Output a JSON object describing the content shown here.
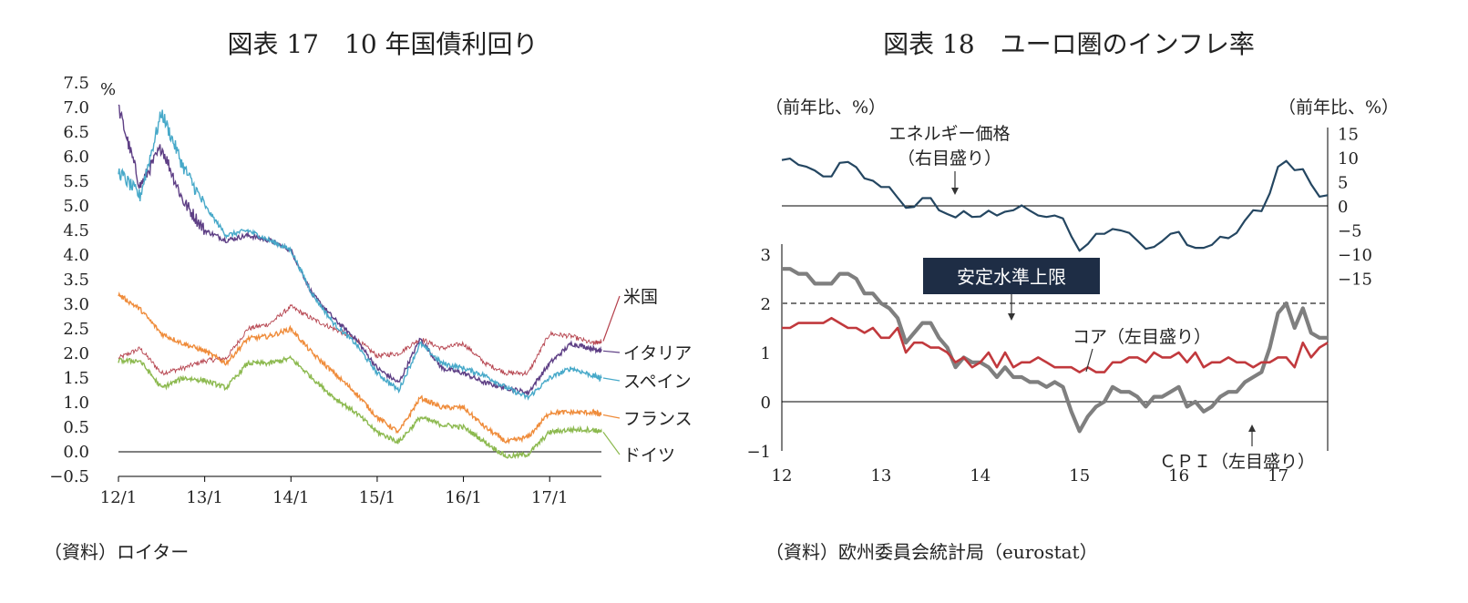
{
  "chart_data": [
    {
      "type": "line",
      "title": "図表 17　10 年国債利回り",
      "unit": "%",
      "ylim": [
        -0.5,
        7.5
      ],
      "yticks": [
        "7.5",
        "7.0",
        "6.5",
        "6.0",
        "5.5",
        "5.0",
        "4.5",
        "4.0",
        "3.5",
        "3.0",
        "2.5",
        "2.0",
        "1.5",
        "1.0",
        "0.5",
        "0.0",
        "−0.5"
      ],
      "xticks": [
        "12/1",
        "13/1",
        "14/1",
        "15/1",
        "16/1",
        "17/1"
      ],
      "x": [
        2012.0,
        2012.25,
        2012.5,
        2012.75,
        2013.0,
        2013.25,
        2013.5,
        2013.75,
        2014.0,
        2014.25,
        2014.5,
        2014.75,
        2015.0,
        2015.25,
        2015.5,
        2015.75,
        2016.0,
        2016.25,
        2016.5,
        2016.75,
        2017.0,
        2017.25,
        2017.5,
        2017.6
      ],
      "series": [
        {
          "name": "米国",
          "color": "#b5424d",
          "values": [
            1.9,
            2.1,
            1.6,
            1.7,
            1.85,
            1.9,
            2.5,
            2.6,
            2.95,
            2.7,
            2.5,
            2.3,
            1.95,
            2.0,
            2.3,
            2.1,
            2.2,
            1.8,
            1.6,
            1.6,
            2.4,
            2.35,
            2.2,
            2.25
          ]
        },
        {
          "name": "イタリア",
          "color": "#5e3f85",
          "values": [
            7.0,
            5.4,
            6.2,
            5.1,
            4.5,
            4.3,
            4.4,
            4.3,
            4.1,
            3.2,
            2.7,
            2.3,
            1.7,
            1.4,
            2.3,
            1.7,
            1.6,
            1.4,
            1.3,
            1.2,
            1.8,
            2.2,
            2.1,
            2.05
          ]
        },
        {
          "name": "スペイン",
          "color": "#47a9c9",
          "values": [
            5.7,
            5.2,
            6.9,
            5.8,
            5.0,
            4.4,
            4.5,
            4.3,
            4.1,
            3.2,
            2.6,
            2.2,
            1.6,
            1.25,
            2.2,
            1.8,
            1.7,
            1.55,
            1.3,
            1.1,
            1.5,
            1.7,
            1.55,
            1.5
          ]
        },
        {
          "name": "フランス",
          "color": "#ef8c3b",
          "values": [
            3.2,
            2.9,
            2.4,
            2.2,
            2.05,
            1.8,
            2.3,
            2.35,
            2.5,
            2.0,
            1.6,
            1.2,
            0.7,
            0.4,
            1.1,
            0.9,
            0.9,
            0.5,
            0.2,
            0.3,
            0.8,
            0.8,
            0.8,
            0.75
          ]
        },
        {
          "name": "ドイツ",
          "color": "#8cb94f",
          "values": [
            1.85,
            1.85,
            1.3,
            1.5,
            1.45,
            1.3,
            1.8,
            1.8,
            1.9,
            1.5,
            1.1,
            0.8,
            0.4,
            0.2,
            0.7,
            0.55,
            0.5,
            0.2,
            -0.1,
            -0.05,
            0.4,
            0.45,
            0.45,
            0.4
          ]
        }
      ]
    },
    {
      "type": "line",
      "title": "図表 18　ユーロ圏のインフレ率",
      "left_unit": "（前年比、%）",
      "right_unit": "（前年比、%）",
      "ylim_left": [
        -1,
        3
      ],
      "ylim_right": [
        -15,
        15
      ],
      "yticks_left": [
        "3",
        "2",
        "1",
        "0",
        "−1"
      ],
      "yticks_right": [
        "15",
        "10",
        "5",
        "0",
        "−5",
        "−10",
        "−15"
      ],
      "xticks": [
        "12",
        "13",
        "14",
        "15",
        "16",
        "17"
      ],
      "x": [
        2012.0,
        2012.083,
        2012.167,
        2012.25,
        2012.333,
        2012.417,
        2012.5,
        2012.583,
        2012.667,
        2012.75,
        2012.833,
        2012.917,
        2013.0,
        2013.083,
        2013.167,
        2013.25,
        2013.333,
        2013.417,
        2013.5,
        2013.583,
        2013.667,
        2013.75,
        2013.833,
        2013.917,
        2014.0,
        2014.083,
        2014.167,
        2014.25,
        2014.333,
        2014.417,
        2014.5,
        2014.583,
        2014.667,
        2014.75,
        2014.833,
        2014.917,
        2015.0,
        2015.083,
        2015.167,
        2015.25,
        2015.333,
        2015.417,
        2015.5,
        2015.583,
        2015.667,
        2015.75,
        2015.833,
        2015.917,
        2016.0,
        2016.083,
        2016.167,
        2016.25,
        2016.333,
        2016.417,
        2016.5,
        2016.583,
        2016.667,
        2016.75,
        2016.833,
        2016.917,
        2017.0,
        2017.083,
        2017.167,
        2017.25,
        2017.333,
        2017.417,
        2017.5
      ],
      "series": [
        {
          "name": "エネルギー価格（右目盛り）",
          "axis": "right",
          "color": "#244661",
          "values": [
            9.5,
            9.8,
            8.5,
            8.1,
            7.3,
            6.1,
            6.1,
            8.9,
            9.1,
            8.0,
            5.7,
            5.2,
            3.9,
            3.9,
            1.7,
            -0.4,
            -0.2,
            1.6,
            1.6,
            -0.9,
            -1.7,
            -2.4,
            -1.1,
            -2.3,
            -2.2,
            -1.0,
            -2.0,
            -1.2,
            -0.9,
            0.1,
            -1.0,
            -2.0,
            -2.3,
            -2.0,
            -2.6,
            -6.3,
            -9.3,
            -7.9,
            -5.8,
            -5.8,
            -4.8,
            -5.1,
            -5.6,
            -7.2,
            -8.9,
            -8.5,
            -7.3,
            -5.8,
            -5.4,
            -8.1,
            -8.7,
            -8.7,
            -8.1,
            -6.4,
            -6.7,
            -5.6,
            -3.0,
            -0.9,
            -1.1,
            2.6,
            8.1,
            9.3,
            7.4,
            7.6,
            4.5,
            1.9,
            2.2
          ]
        },
        {
          "name": "ＣＰＩ（左目盛り）",
          "axis": "left",
          "color": "#7f7f7f",
          "values": [
            2.7,
            2.7,
            2.6,
            2.6,
            2.4,
            2.4,
            2.4,
            2.6,
            2.6,
            2.5,
            2.2,
            2.2,
            2.0,
            1.9,
            1.7,
            1.2,
            1.4,
            1.6,
            1.6,
            1.3,
            1.1,
            0.7,
            0.9,
            0.8,
            0.8,
            0.7,
            0.5,
            0.7,
            0.5,
            0.5,
            0.4,
            0.4,
            0.3,
            0.4,
            0.3,
            -0.2,
            -0.6,
            -0.3,
            -0.1,
            0.0,
            0.3,
            0.2,
            0.2,
            0.1,
            -0.1,
            0.1,
            0.1,
            0.2,
            0.3,
            -0.1,
            0.0,
            -0.2,
            -0.1,
            0.1,
            0.2,
            0.2,
            0.4,
            0.5,
            0.6,
            1.1,
            1.8,
            2.0,
            1.5,
            1.9,
            1.4,
            1.3,
            1.3
          ]
        },
        {
          "name": "コア（左目盛り）",
          "axis": "left",
          "color": "#c1393d",
          "values": [
            1.5,
            1.5,
            1.6,
            1.6,
            1.6,
            1.6,
            1.7,
            1.6,
            1.5,
            1.5,
            1.4,
            1.5,
            1.3,
            1.3,
            1.5,
            1.0,
            1.2,
            1.2,
            1.1,
            1.1,
            1.0,
            0.8,
            0.9,
            0.7,
            0.8,
            1.0,
            0.7,
            1.0,
            0.7,
            0.8,
            0.8,
            0.9,
            0.8,
            0.7,
            0.7,
            0.7,
            0.6,
            0.7,
            0.6,
            0.6,
            0.8,
            0.8,
            0.9,
            0.9,
            0.8,
            1.0,
            0.9,
            0.9,
            1.0,
            0.8,
            1.0,
            0.7,
            0.8,
            0.8,
            0.9,
            0.8,
            0.8,
            0.7,
            0.8,
            0.8,
            0.9,
            0.9,
            0.7,
            1.2,
            0.9,
            1.1,
            1.2
          ]
        }
      ],
      "reference_line": {
        "label": "安定水準上限",
        "value": 2.0
      }
    }
  ],
  "labels": {
    "left_series": [
      "米国",
      "イタリア",
      "スペイン",
      "フランス",
      "ドイツ"
    ],
    "energy_1": "エネルギー価格",
    "energy_2": "（右目盛り）",
    "core": "コア（左目盛り）",
    "cpi": "ＣＰＩ（左目盛り）"
  },
  "sources": {
    "left": "（資料）ロイター",
    "right": "（資料）欧州委員会統計局（eurostat）"
  },
  "colors": {
    "us": "#b5424d",
    "italy": "#5e3f85",
    "spain": "#47a9c9",
    "france": "#ef8c3b",
    "germany": "#8cb94f",
    "energy": "#244661",
    "cpi": "#7f7f7f",
    "core": "#c1393d",
    "label_box": "#1e2d45"
  }
}
